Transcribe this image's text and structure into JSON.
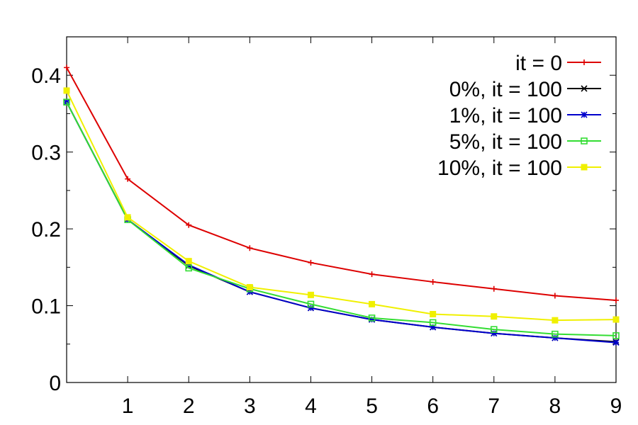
{
  "chart_data": {
    "type": "line",
    "title": "",
    "xlabel": "",
    "ylabel": "",
    "xlim": [
      0,
      9
    ],
    "ylim": [
      0,
      0.45
    ],
    "x_ticks": [
      1,
      2,
      3,
      4,
      5,
      6,
      7,
      8,
      9
    ],
    "y_ticks": [
      0,
      0.1,
      0.2,
      0.3,
      0.4
    ],
    "y_minor_ticks": [
      0.05,
      0.15,
      0.25,
      0.35
    ],
    "x_tick_labels": [
      "1",
      "2",
      "3",
      "4",
      "5",
      "6",
      "7",
      "8",
      "9"
    ],
    "y_tick_labels": [
      "0",
      "0.1",
      "0.2",
      "0.3",
      "0.4"
    ],
    "grid": false,
    "legend_position": "top-right",
    "x": [
      0,
      1,
      2,
      3,
      4,
      5,
      6,
      7,
      8,
      9
    ],
    "series": [
      {
        "name": "it = 0",
        "color": "#dd0000",
        "marker": "plus",
        "values": [
          0.41,
          0.265,
          0.205,
          0.175,
          0.156,
          0.141,
          0.131,
          0.122,
          0.113,
          0.107
        ]
      },
      {
        "name": "0%, it = 100",
        "color": "#000000",
        "marker": "cross",
        "values": [
          0.365,
          0.212,
          0.152,
          0.118,
          0.097,
          0.082,
          0.072,
          0.064,
          0.058,
          0.053
        ]
      },
      {
        "name": "1%, it = 100",
        "color": "#0000cc",
        "marker": "star",
        "values": [
          0.365,
          0.212,
          0.153,
          0.118,
          0.097,
          0.082,
          0.072,
          0.064,
          0.058,
          0.052
        ]
      },
      {
        "name": "5%, it = 100",
        "color": "#33dd33",
        "marker": "open-square",
        "values": [
          0.365,
          0.212,
          0.149,
          0.122,
          0.102,
          0.084,
          0.078,
          0.069,
          0.063,
          0.061
        ]
      },
      {
        "name": "10%, it = 100",
        "color": "#f0f000",
        "marker": "filled-square",
        "values": [
          0.38,
          0.215,
          0.158,
          0.124,
          0.114,
          0.102,
          0.089,
          0.086,
          0.081,
          0.082
        ]
      }
    ]
  }
}
